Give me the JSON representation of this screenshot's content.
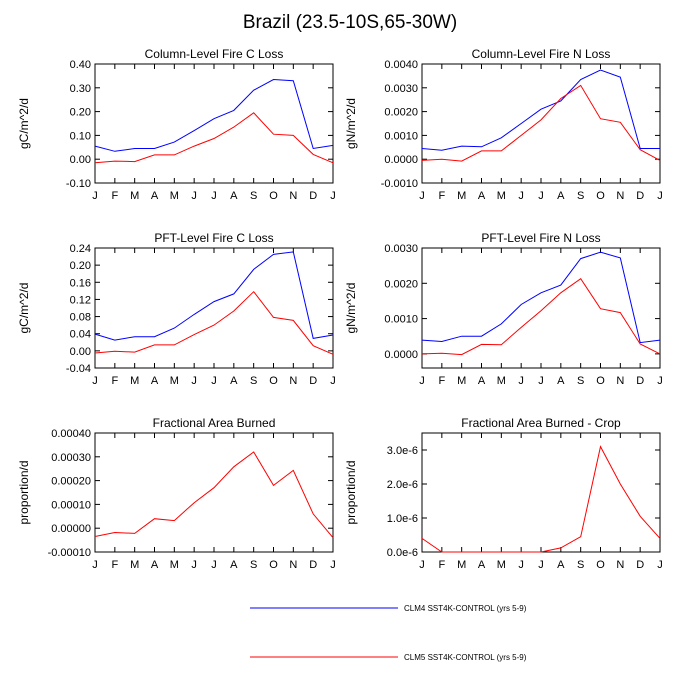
{
  "title": "Brazil (23.5-10S,65-30W)",
  "months": [
    "J",
    "F",
    "M",
    "A",
    "M",
    "J",
    "J",
    "A",
    "S",
    "O",
    "N",
    "D",
    "J"
  ],
  "colors": {
    "clm4": "#0000ff",
    "clm5": "#ff0000"
  },
  "legend": [
    {
      "name": "CLM4 SST4K-CONTROL (yrs 5-9)",
      "color": "#0000ff"
    },
    {
      "name": "CLM5 SST4K-CONTROL (yrs 5-9)",
      "color": "#ff0000"
    }
  ],
  "chart_data": [
    {
      "type": "line",
      "title": "Column-Level Fire C Loss",
      "ylabel": "gC/m^2/d",
      "ylim": [
        -0.1,
        0.4
      ],
      "yticks": [
        -0.1,
        0.0,
        0.1,
        0.2,
        0.3,
        0.4
      ],
      "ytick_labels": [
        "-0.10",
        "0.00",
        "0.10",
        "0.20",
        "0.30",
        "0.40"
      ],
      "series": [
        {
          "name": "CLM4 SST4K-CONTROL (yrs 5-9)",
          "values": [
            0.055,
            0.033,
            0.045,
            0.045,
            0.072,
            0.12,
            0.17,
            0.205,
            0.29,
            0.335,
            0.33,
            0.045,
            0.058
          ]
        },
        {
          "name": "CLM5 SST4K-CONTROL (yrs 5-9)",
          "values": [
            -0.015,
            -0.008,
            -0.01,
            0.018,
            0.018,
            0.055,
            0.087,
            0.135,
            0.195,
            0.105,
            0.1,
            0.02,
            -0.015
          ]
        }
      ]
    },
    {
      "type": "line",
      "title": "Column-Level Fire N Loss",
      "ylabel": "gN/m^2/d",
      "ylim": [
        -0.001,
        0.004
      ],
      "yticks": [
        -0.001,
        0.0,
        0.001,
        0.002,
        0.003,
        0.004
      ],
      "ytick_labels": [
        "-0.0010",
        "0.0000",
        "0.0010",
        "0.0020",
        "0.0030",
        "0.0040"
      ],
      "series": [
        {
          "name": "CLM4 SST4K-CONTROL (yrs 5-9)",
          "values": [
            0.00045,
            0.00038,
            0.00055,
            0.00052,
            0.0009,
            0.0015,
            0.0021,
            0.00245,
            0.00335,
            0.00375,
            0.00345,
            0.00045,
            0.00045
          ]
        },
        {
          "name": "CLM5 SST4K-CONTROL (yrs 5-9)",
          "values": [
            -5e-05,
            0.0,
            -8e-05,
            0.00035,
            0.00035,
            0.001,
            0.00165,
            0.00255,
            0.0031,
            0.0017,
            0.00155,
            0.0004,
            -5e-05
          ]
        }
      ]
    },
    {
      "type": "line",
      "title": "PFT-Level Fire C Loss",
      "ylabel": "gC/m^2/d",
      "ylim": [
        -0.04,
        0.24
      ],
      "yticks": [
        -0.04,
        0.0,
        0.04,
        0.08,
        0.12,
        0.16,
        0.2,
        0.24
      ],
      "ytick_labels": [
        "-0.04",
        "0.00",
        "0.04",
        "0.08",
        "0.12",
        "0.16",
        "0.20",
        "0.24"
      ],
      "series": [
        {
          "name": "CLM4 SST4K-CONTROL (yrs 5-9)",
          "values": [
            0.039,
            0.025,
            0.033,
            0.033,
            0.053,
            0.085,
            0.115,
            0.133,
            0.19,
            0.225,
            0.231,
            0.029,
            0.037
          ]
        },
        {
          "name": "CLM5 SST4K-CONTROL (yrs 5-9)",
          "values": [
            -0.005,
            -0.001,
            -0.003,
            0.014,
            0.014,
            0.038,
            0.06,
            0.093,
            0.138,
            0.078,
            0.071,
            0.012,
            -0.008
          ]
        }
      ]
    },
    {
      "type": "line",
      "title": "PFT-Level Fire N Loss",
      "ylabel": "gN/m^2/d",
      "ylim": [
        -0.0004,
        0.003
      ],
      "yticks": [
        0.0,
        0.001,
        0.002,
        0.003
      ],
      "ytick_labels": [
        "0.0000",
        "0.0010",
        "0.0020",
        "0.0030"
      ],
      "series": [
        {
          "name": "CLM4 SST4K-CONTROL (yrs 5-9)",
          "values": [
            0.00039,
            0.00035,
            0.0005,
            0.0005,
            0.00085,
            0.0014,
            0.00173,
            0.00195,
            0.0027,
            0.00288,
            0.00272,
            0.00032,
            0.00039
          ]
        },
        {
          "name": "CLM5 SST4K-CONTROL (yrs 5-9)",
          "values": [
            0.0,
            2e-05,
            -2e-05,
            0.00027,
            0.00026,
            0.00075,
            0.00122,
            0.00173,
            0.00213,
            0.00128,
            0.00117,
            0.00028,
            0.0
          ]
        }
      ]
    },
    {
      "type": "line",
      "title": "Fractional Area Burned",
      "ylabel": "proportion/d",
      "ylim": [
        -0.0001,
        0.0004
      ],
      "yticks": [
        -0.0001,
        0.0,
        0.0001,
        0.0002,
        0.0003,
        0.0004
      ],
      "ytick_labels": [
        "-0.00010",
        "0.00000",
        "0.00010",
        "0.00020",
        "0.00030",
        "0.00040"
      ],
      "series": [
        {
          "name": "CLM5 SST4K-CONTROL (yrs 5-9)",
          "values": [
            -3.5e-05,
            -1.8e-05,
            -2.2e-05,
            4e-05,
            3.2e-05,
            0.000107,
            0.00017,
            0.000258,
            0.00032,
            0.00018,
            0.000243,
            6e-05,
            -4e-05
          ]
        }
      ]
    },
    {
      "type": "line",
      "title": "Fractional Area Burned - Crop",
      "ylabel": "proportion/d",
      "ylim": [
        0.0,
        3.5e-06
      ],
      "yticks": [
        0.0,
        1e-06,
        2e-06,
        3e-06
      ],
      "ytick_labels": [
        "0.0e-6",
        "1.0e-6",
        "2.0e-6",
        "3.0e-6"
      ],
      "series": [
        {
          "name": "CLM5 SST4K-CONTROL (yrs 5-9)",
          "values": [
            4e-07,
            0.0,
            0.0,
            0.0,
            0.0,
            0.0,
            0.0,
            1.2e-07,
            4.5e-07,
            3.1e-06,
            2e-06,
            1.05e-06,
            4e-07
          ]
        }
      ]
    }
  ]
}
